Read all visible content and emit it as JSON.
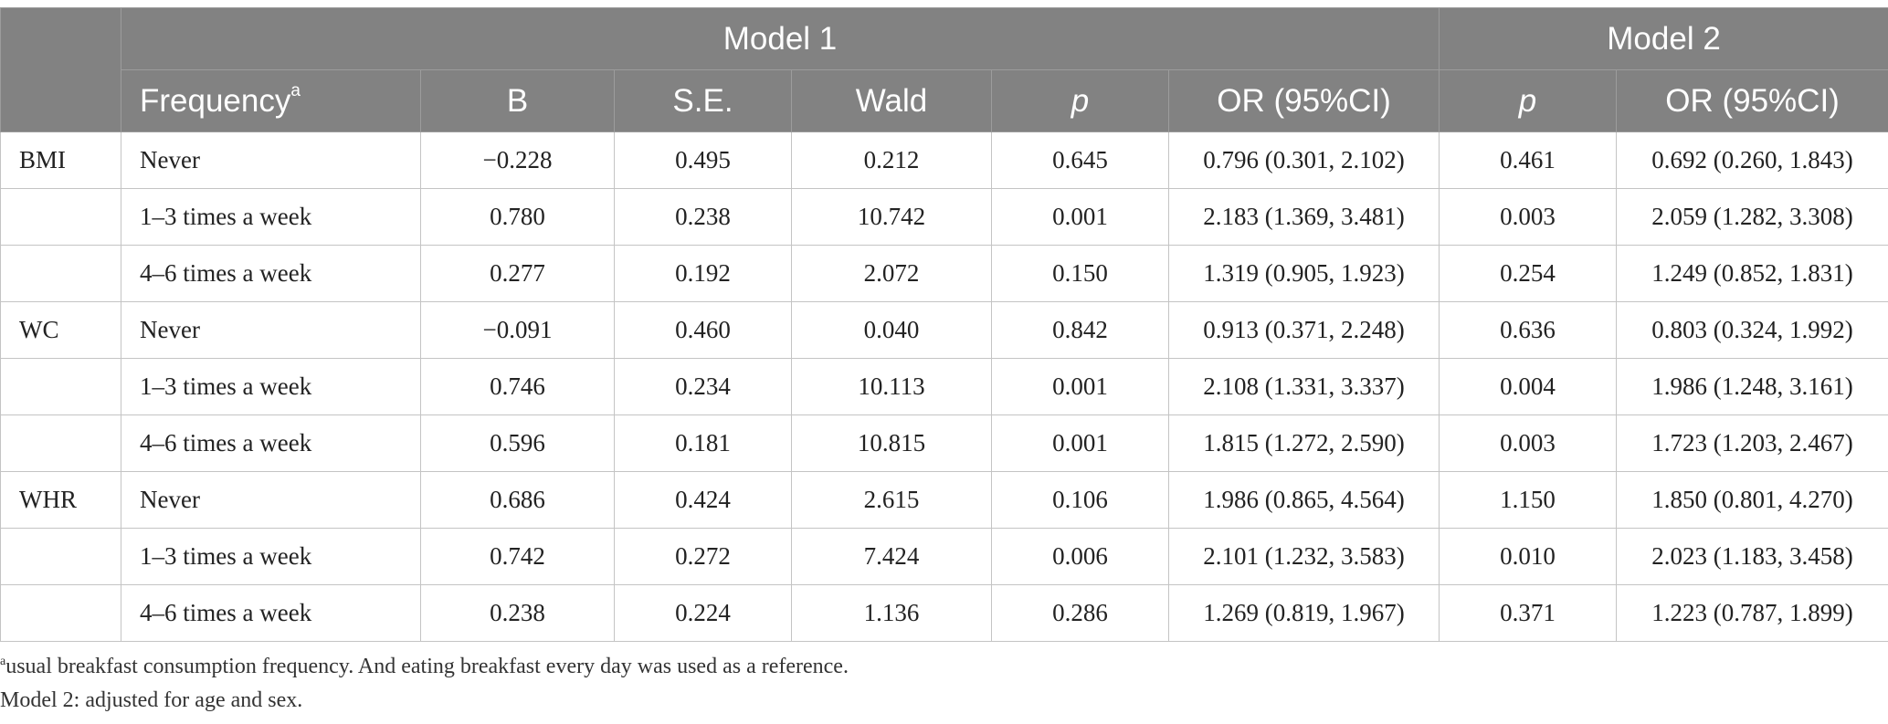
{
  "header": {
    "model1": "Model 1",
    "model2": "Model 2",
    "frequency": "Frequency",
    "frequency_sup": "a",
    "b": "B",
    "se": "S.E.",
    "wald": "Wald",
    "p": "p",
    "or": "OR (95%CI)",
    "p2": "p",
    "or2": "OR (95%CI)"
  },
  "rows": [
    {
      "outcome": "BMI",
      "freq": "Never",
      "b": "−0.228",
      "se": "0.495",
      "wald": "0.212",
      "p": "0.645",
      "or": "0.796 (0.301, 2.102)",
      "p2": "0.461",
      "or2": "0.692 (0.260, 1.843)"
    },
    {
      "outcome": "",
      "freq": "1–3 times a week",
      "b": "0.780",
      "se": "0.238",
      "wald": "10.742",
      "p": "0.001",
      "or": "2.183 (1.369, 3.481)",
      "p2": "0.003",
      "or2": "2.059 (1.282, 3.308)"
    },
    {
      "outcome": "",
      "freq": "4–6 times a week",
      "b": "0.277",
      "se": "0.192",
      "wald": "2.072",
      "p": "0.150",
      "or": "1.319 (0.905, 1.923)",
      "p2": "0.254",
      "or2": "1.249 (0.852, 1.831)"
    },
    {
      "outcome": "WC",
      "freq": "Never",
      "b": "−0.091",
      "se": "0.460",
      "wald": "0.040",
      "p": "0.842",
      "or": "0.913 (0.371, 2.248)",
      "p2": "0.636",
      "or2": "0.803 (0.324, 1.992)"
    },
    {
      "outcome": "",
      "freq": "1–3 times a week",
      "b": "0.746",
      "se": "0.234",
      "wald": "10.113",
      "p": "0.001",
      "or": "2.108 (1.331, 3.337)",
      "p2": "0.004",
      "or2": "1.986 (1.248, 3.161)"
    },
    {
      "outcome": "",
      "freq": "4–6 times a week",
      "b": "0.596",
      "se": "0.181",
      "wald": "10.815",
      "p": "0.001",
      "or": "1.815 (1.272, 2.590)",
      "p2": "0.003",
      "or2": "1.723 (1.203, 2.467)"
    },
    {
      "outcome": "WHR",
      "freq": "Never",
      "b": "0.686",
      "se": "0.424",
      "wald": "2.615",
      "p": "0.106",
      "or": "1.986 (0.865, 4.564)",
      "p2": "1.150",
      "or2": "1.850 (0.801, 4.270)"
    },
    {
      "outcome": "",
      "freq": "1–3 times a week",
      "b": "0.742",
      "se": "0.272",
      "wald": "7.424",
      "p": "0.006",
      "or": "2.101 (1.232, 3.583)",
      "p2": "0.010",
      "or2": "2.023 (1.183, 3.458)"
    },
    {
      "outcome": "",
      "freq": "4–6 times a week",
      "b": "0.238",
      "se": "0.224",
      "wald": "1.136",
      "p": "0.286",
      "or": "1.269 (0.819, 1.967)",
      "p2": "0.371",
      "or2": "1.223 (0.787, 1.899)"
    }
  ],
  "footnotes": {
    "note_a_marker": "a",
    "note_a": "usual breakfast consumption frequency. And eating breakfast every day was used as a reference.",
    "note_model2": "Model 2: adjusted for age and sex."
  }
}
